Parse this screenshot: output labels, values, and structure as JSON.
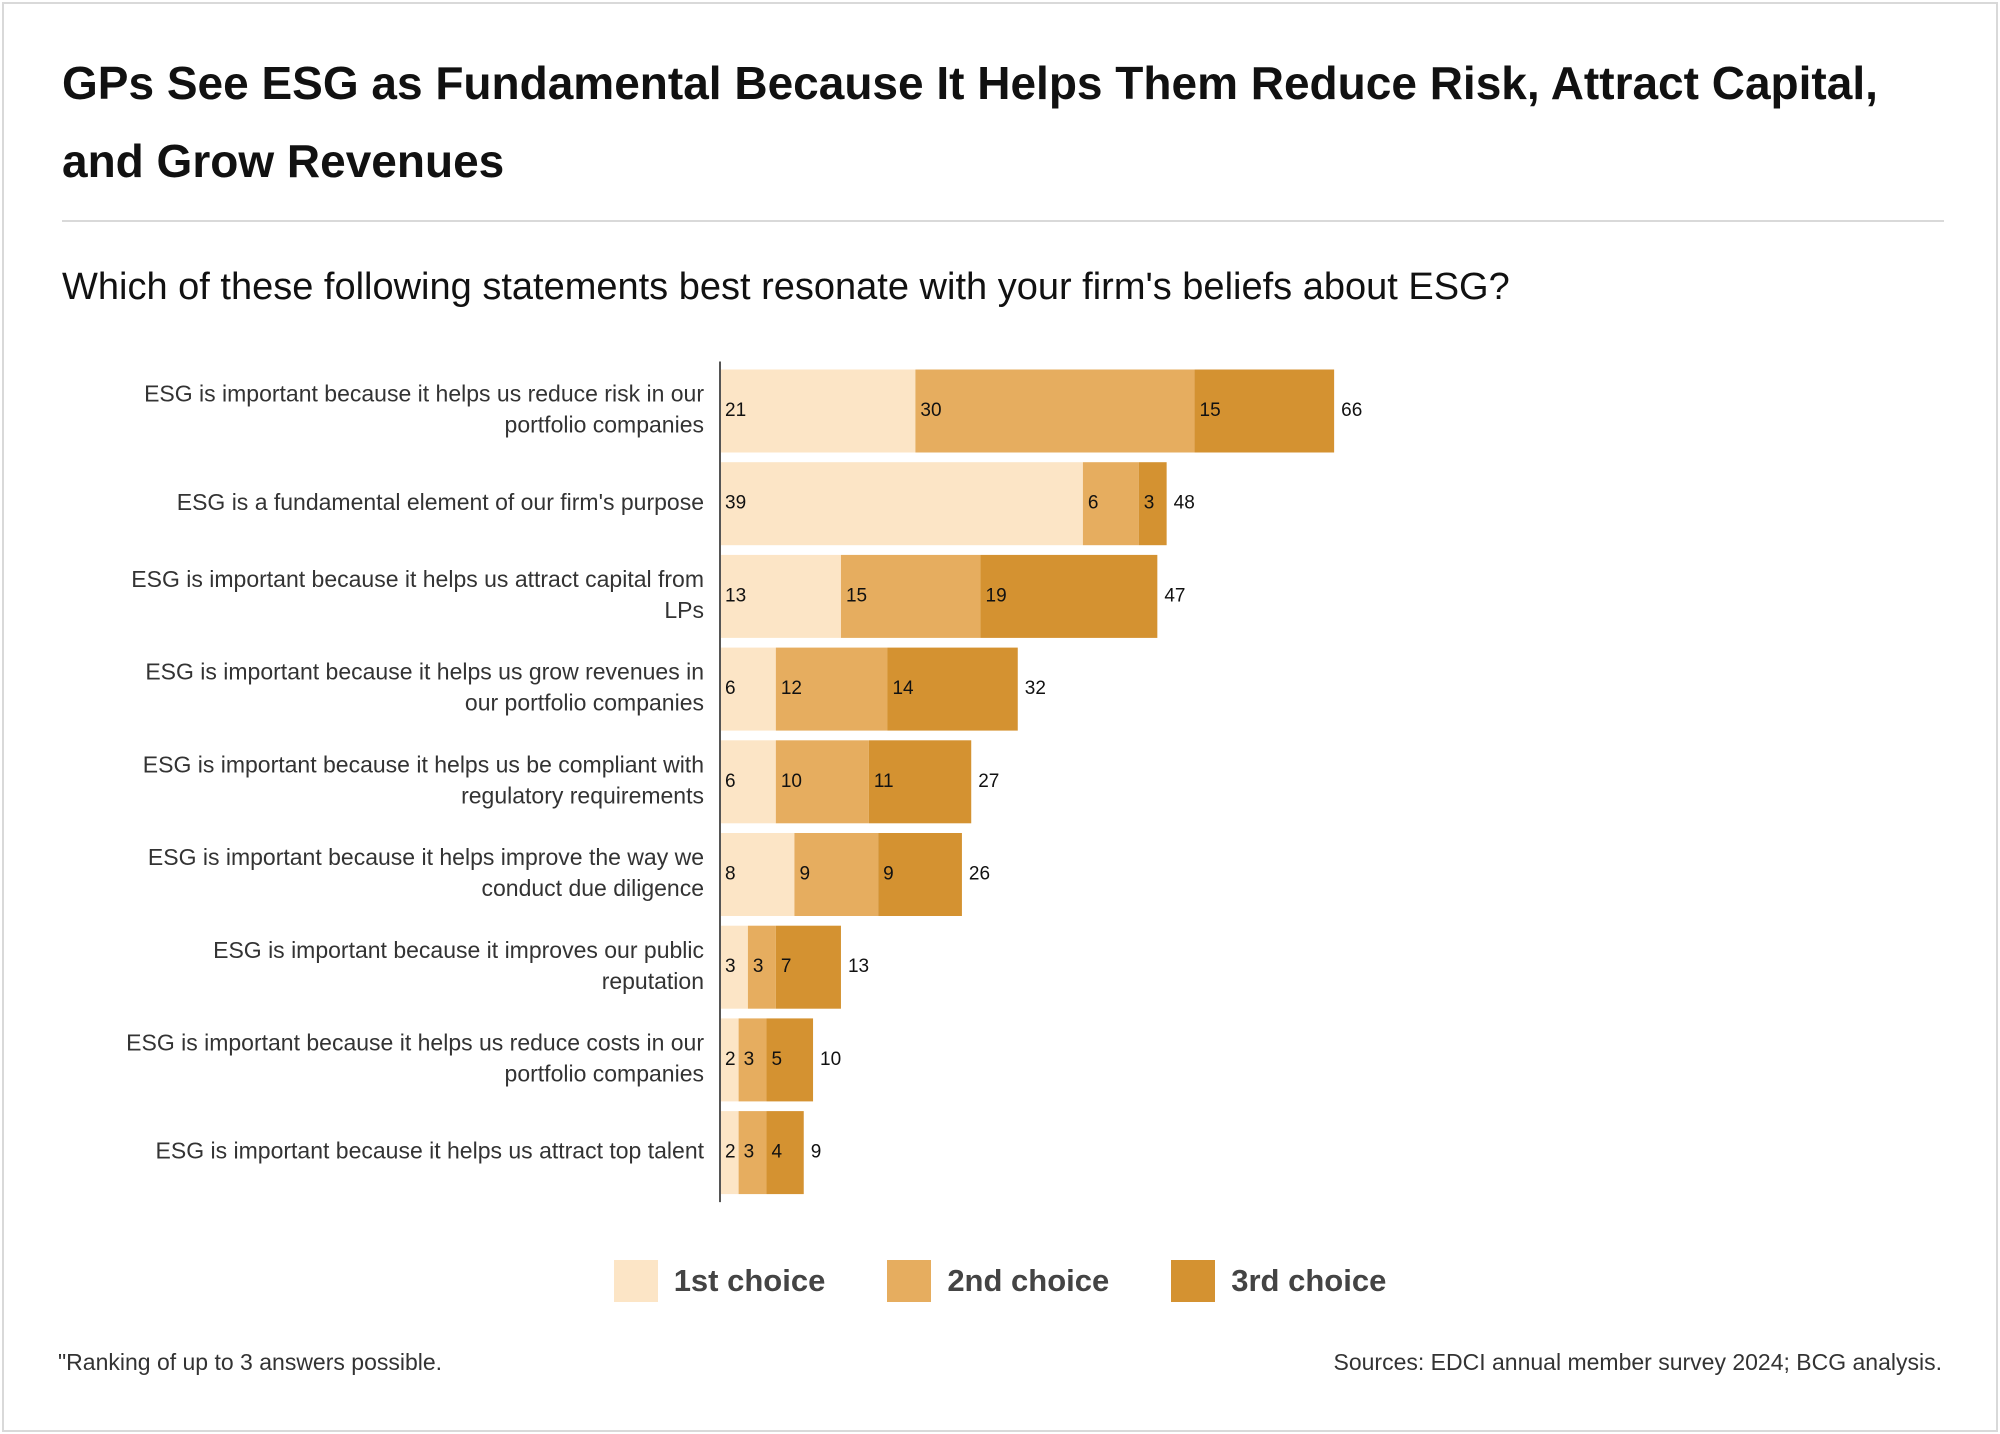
{
  "header": {
    "title": "GPs See ESG as Fundamental Because It Helps Them Reduce Risk, Attract Capital, and Grow Revenues",
    "subtitle": "Which of these following statements best resonate with your firm's beliefs about ESG?"
  },
  "footer": {
    "footnote": "\"Ranking of up to 3 answers possible.",
    "sources": "Sources: EDCI annual member survey 2024; BCG analysis."
  },
  "colors": {
    "first": "#fce5c6",
    "second": "#e6ad5f",
    "third": "#d49231",
    "axis": "#555555"
  },
  "chart_data": {
    "type": "bar",
    "orientation": "horizontal",
    "stacked": true,
    "title": "GPs See ESG as Fundamental Because It Helps Them Reduce Risk, Attract Capital, and Grow Revenues",
    "subtitle": "Which of these following statements best resonate with your firm's beliefs about ESG?",
    "categories": [
      [
        "ESG is important because it helps us reduce risk in our",
        "portfolio companies"
      ],
      [
        "ESG is a fundamental element of our firm's purpose"
      ],
      [
        "ESG is important because it helps us attract capital from",
        "LPs"
      ],
      [
        "ESG is important because it helps us grow revenues in",
        "our portfolio companies"
      ],
      [
        "ESG is important because it helps us be compliant with",
        "regulatory requirements"
      ],
      [
        "ESG is important because it helps improve the way we",
        "conduct due diligence"
      ],
      [
        "ESG is important because it improves our public",
        "reputation"
      ],
      [
        "ESG is important because it helps us reduce costs in our",
        "portfolio companies"
      ],
      [
        "ESG is important because it helps us attract top talent"
      ]
    ],
    "series": [
      {
        "name": "1st choice",
        "color": "#fce5c6",
        "values": [
          21,
          39,
          13,
          6,
          6,
          8,
          3,
          2,
          2
        ]
      },
      {
        "name": "2nd choice",
        "color": "#e6ad5f",
        "values": [
          30,
          6,
          15,
          12,
          10,
          9,
          3,
          3,
          3
        ]
      },
      {
        "name": "3rd choice",
        "color": "#d49231",
        "values": [
          15,
          3,
          19,
          14,
          11,
          9,
          7,
          5,
          4
        ]
      }
    ],
    "totals": [
      66,
      48,
      47,
      32,
      27,
      26,
      13,
      10,
      9
    ],
    "xlim": [
      0,
      66
    ],
    "grid": false,
    "legend_position": "bottom"
  }
}
